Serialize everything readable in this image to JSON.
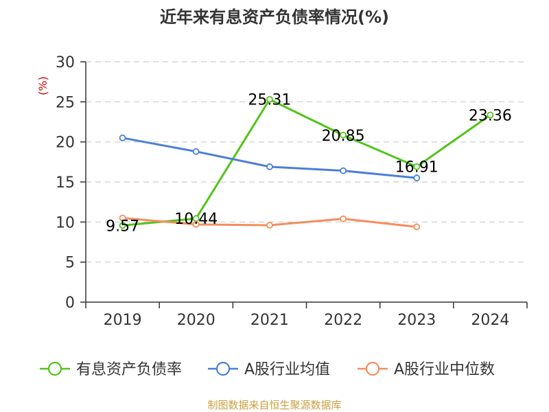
{
  "colors": {
    "series": [
      "#52c41a",
      "#4a7fd8",
      "#f58d5c"
    ],
    "unit": "#cc0000",
    "source": "#c8a040",
    "grid": "#cccccc",
    "axis": "#333333"
  },
  "chart_data": {
    "type": "line",
    "title": "近年来有息资产负债率情况(%)",
    "y_unit": "(%)",
    "source": "制图数据来自恒生聚源数据库",
    "categories": [
      "2019",
      "2020",
      "2021",
      "2022",
      "2023",
      "2024"
    ],
    "ylim": [
      0,
      30
    ],
    "yticks": [
      "0",
      "5",
      "10",
      "15",
      "20",
      "25",
      "30"
    ],
    "grid": "horizontal-dashed",
    "legend_position": "bottom",
    "series": [
      {
        "name": "有息资产负债率",
        "values": [
          9.57,
          10.44,
          25.31,
          20.85,
          16.91,
          23.36
        ],
        "labels": [
          "9.57",
          "10.44",
          "25.31",
          "20.85",
          "16.91",
          "23.36"
        ]
      },
      {
        "name": "A股行业均值",
        "values": [
          20.5,
          18.8,
          16.9,
          16.4,
          15.5,
          null
        ]
      },
      {
        "name": "A股行业中位数",
        "values": [
          10.5,
          9.7,
          9.6,
          10.4,
          9.4,
          null
        ]
      }
    ]
  }
}
